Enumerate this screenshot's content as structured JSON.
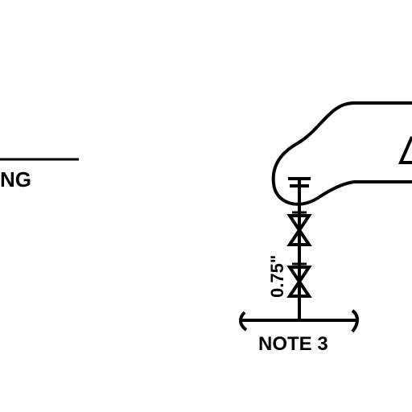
{
  "labels": {
    "left_partial": "NG",
    "dimension": "0.75\"",
    "note": "NOTE 3"
  },
  "colors": {
    "ink": "#000000",
    "background": "#ffffff"
  }
}
